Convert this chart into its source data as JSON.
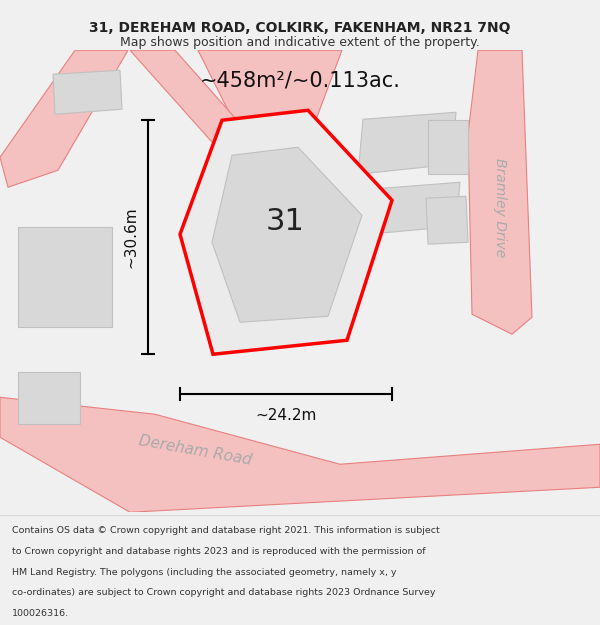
{
  "title_line1": "31, DEREHAM ROAD, COLKIRK, FAKENHAM, NR21 7NQ",
  "title_line2": "Map shows position and indicative extent of the property.",
  "area_label": "~458m²/~0.113ac.",
  "width_label": "~24.2m",
  "height_label": "~30.6m",
  "number_label": "31",
  "road_label_left": "Dereham Road",
  "road_label_right": "Bramley Drive",
  "footer_lines": [
    "Contains OS data © Crown copyright and database right 2021. This information is subject",
    "to Crown copyright and database rights 2023 and is reproduced with the permission of",
    "HM Land Registry. The polygons (including the associated geometry, namely x, y",
    "co-ordinates) are subject to Crown copyright and database rights 2023 Ordnance Survey",
    "100026316."
  ],
  "bg_color": "#f0f0f0",
  "map_bg": "#ffffff",
  "road_color": "#f5c0c0",
  "road_outline": "#e88080",
  "building_color": "#d8d8d8",
  "building_outline": "#c0c0c0",
  "plot_color": "#ebebeb",
  "plot_outline": "#ff0000",
  "text_color": "#333333",
  "footer_bg": "#ffffff"
}
